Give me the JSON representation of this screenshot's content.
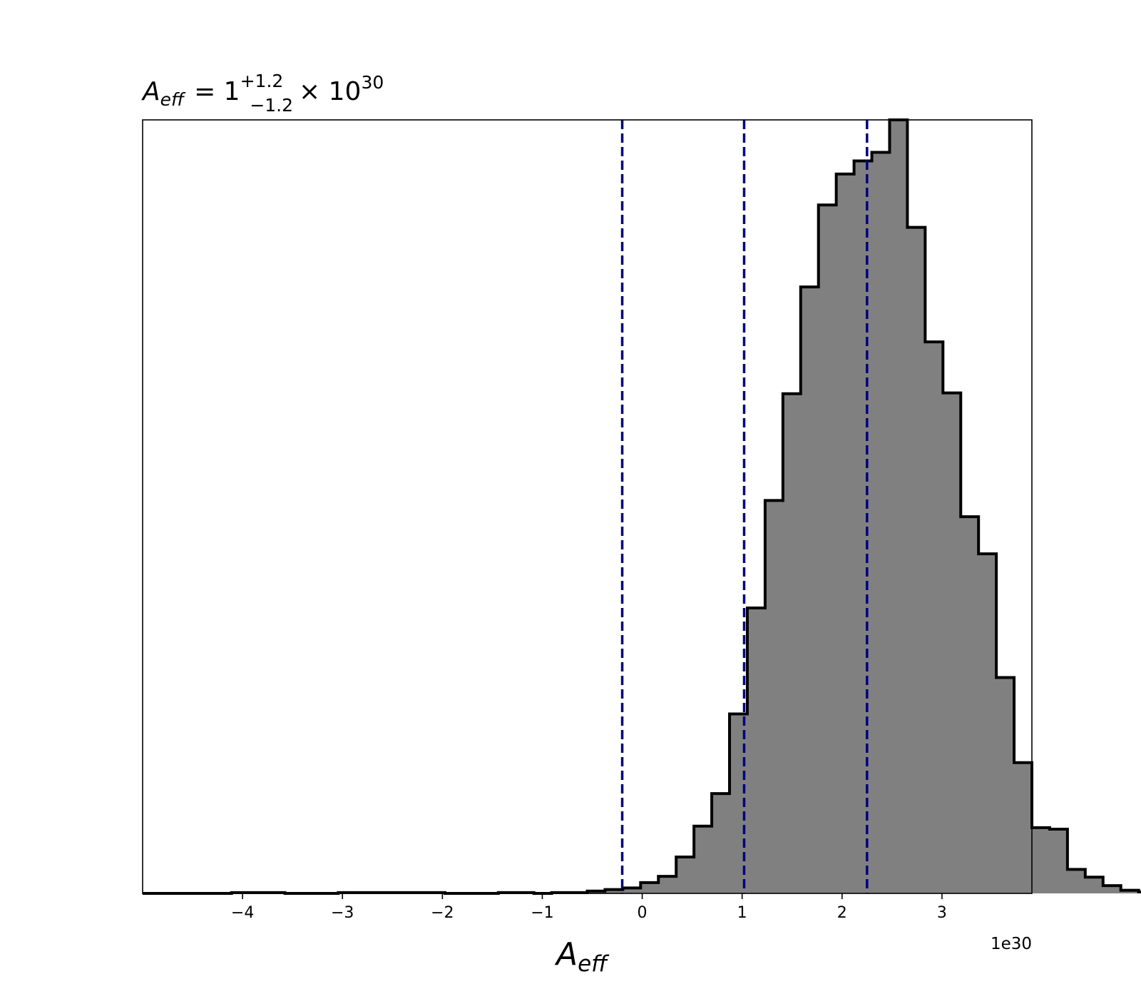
{
  "chart_data": {
    "type": "histogram",
    "title": {
      "symbol": "A",
      "symbol_sub": "eff",
      "equals": "= 1",
      "upper": "+1.2",
      "lower": "−1.2",
      "times": "× 10",
      "exp": "30"
    },
    "xlabel": {
      "symbol": "A",
      "sub": "eff"
    },
    "x_offset_label": "1e30",
    "x_scale": "1e30",
    "xlim": [
      -5.0,
      3.9
    ],
    "ylim": [
      0,
      1.0
    ],
    "y_ticks_visible": false,
    "grid": false,
    "x_ticks": [
      {
        "value": -4,
        "label": "−4"
      },
      {
        "value": -3,
        "label": "−3"
      },
      {
        "value": -2,
        "label": "−2"
      },
      {
        "value": -1,
        "label": "−1"
      },
      {
        "value": 0,
        "label": "0"
      },
      {
        "value": 1,
        "label": "1"
      },
      {
        "value": 2,
        "label": "2"
      },
      {
        "value": 3,
        "label": "3"
      }
    ],
    "bins": {
      "edges_start": -5.0,
      "bin_width": 0.178,
      "heights": [
        0,
        0,
        0,
        0,
        0,
        0.001,
        0.001,
        0.001,
        0,
        0,
        0,
        0.001,
        0.001,
        0.001,
        0.001,
        0.001,
        0.001,
        0,
        0,
        0,
        0.001,
        0.001,
        0,
        0.001,
        0.001,
        0.003,
        0.005,
        0.007,
        0.014,
        0.022,
        0.047,
        0.087,
        0.129,
        0.232,
        0.369,
        0.508,
        0.646,
        0.784,
        0.89,
        0.93,
        0.947,
        0.958,
        1.0,
        0.861,
        0.713,
        0.647,
        0.487,
        0.439,
        0.279,
        0.169,
        0.085,
        0.083,
        0.031,
        0.021,
        0.01,
        0.004,
        0.002,
        0.001,
        0.0,
        0.0
      ]
    },
    "fill_color": "#808080",
    "edge_color": "#000000",
    "quantile_lines": {
      "values": [
        -0.2,
        1.02,
        2.25
      ],
      "color": "#000080",
      "style": "dashed"
    }
  }
}
